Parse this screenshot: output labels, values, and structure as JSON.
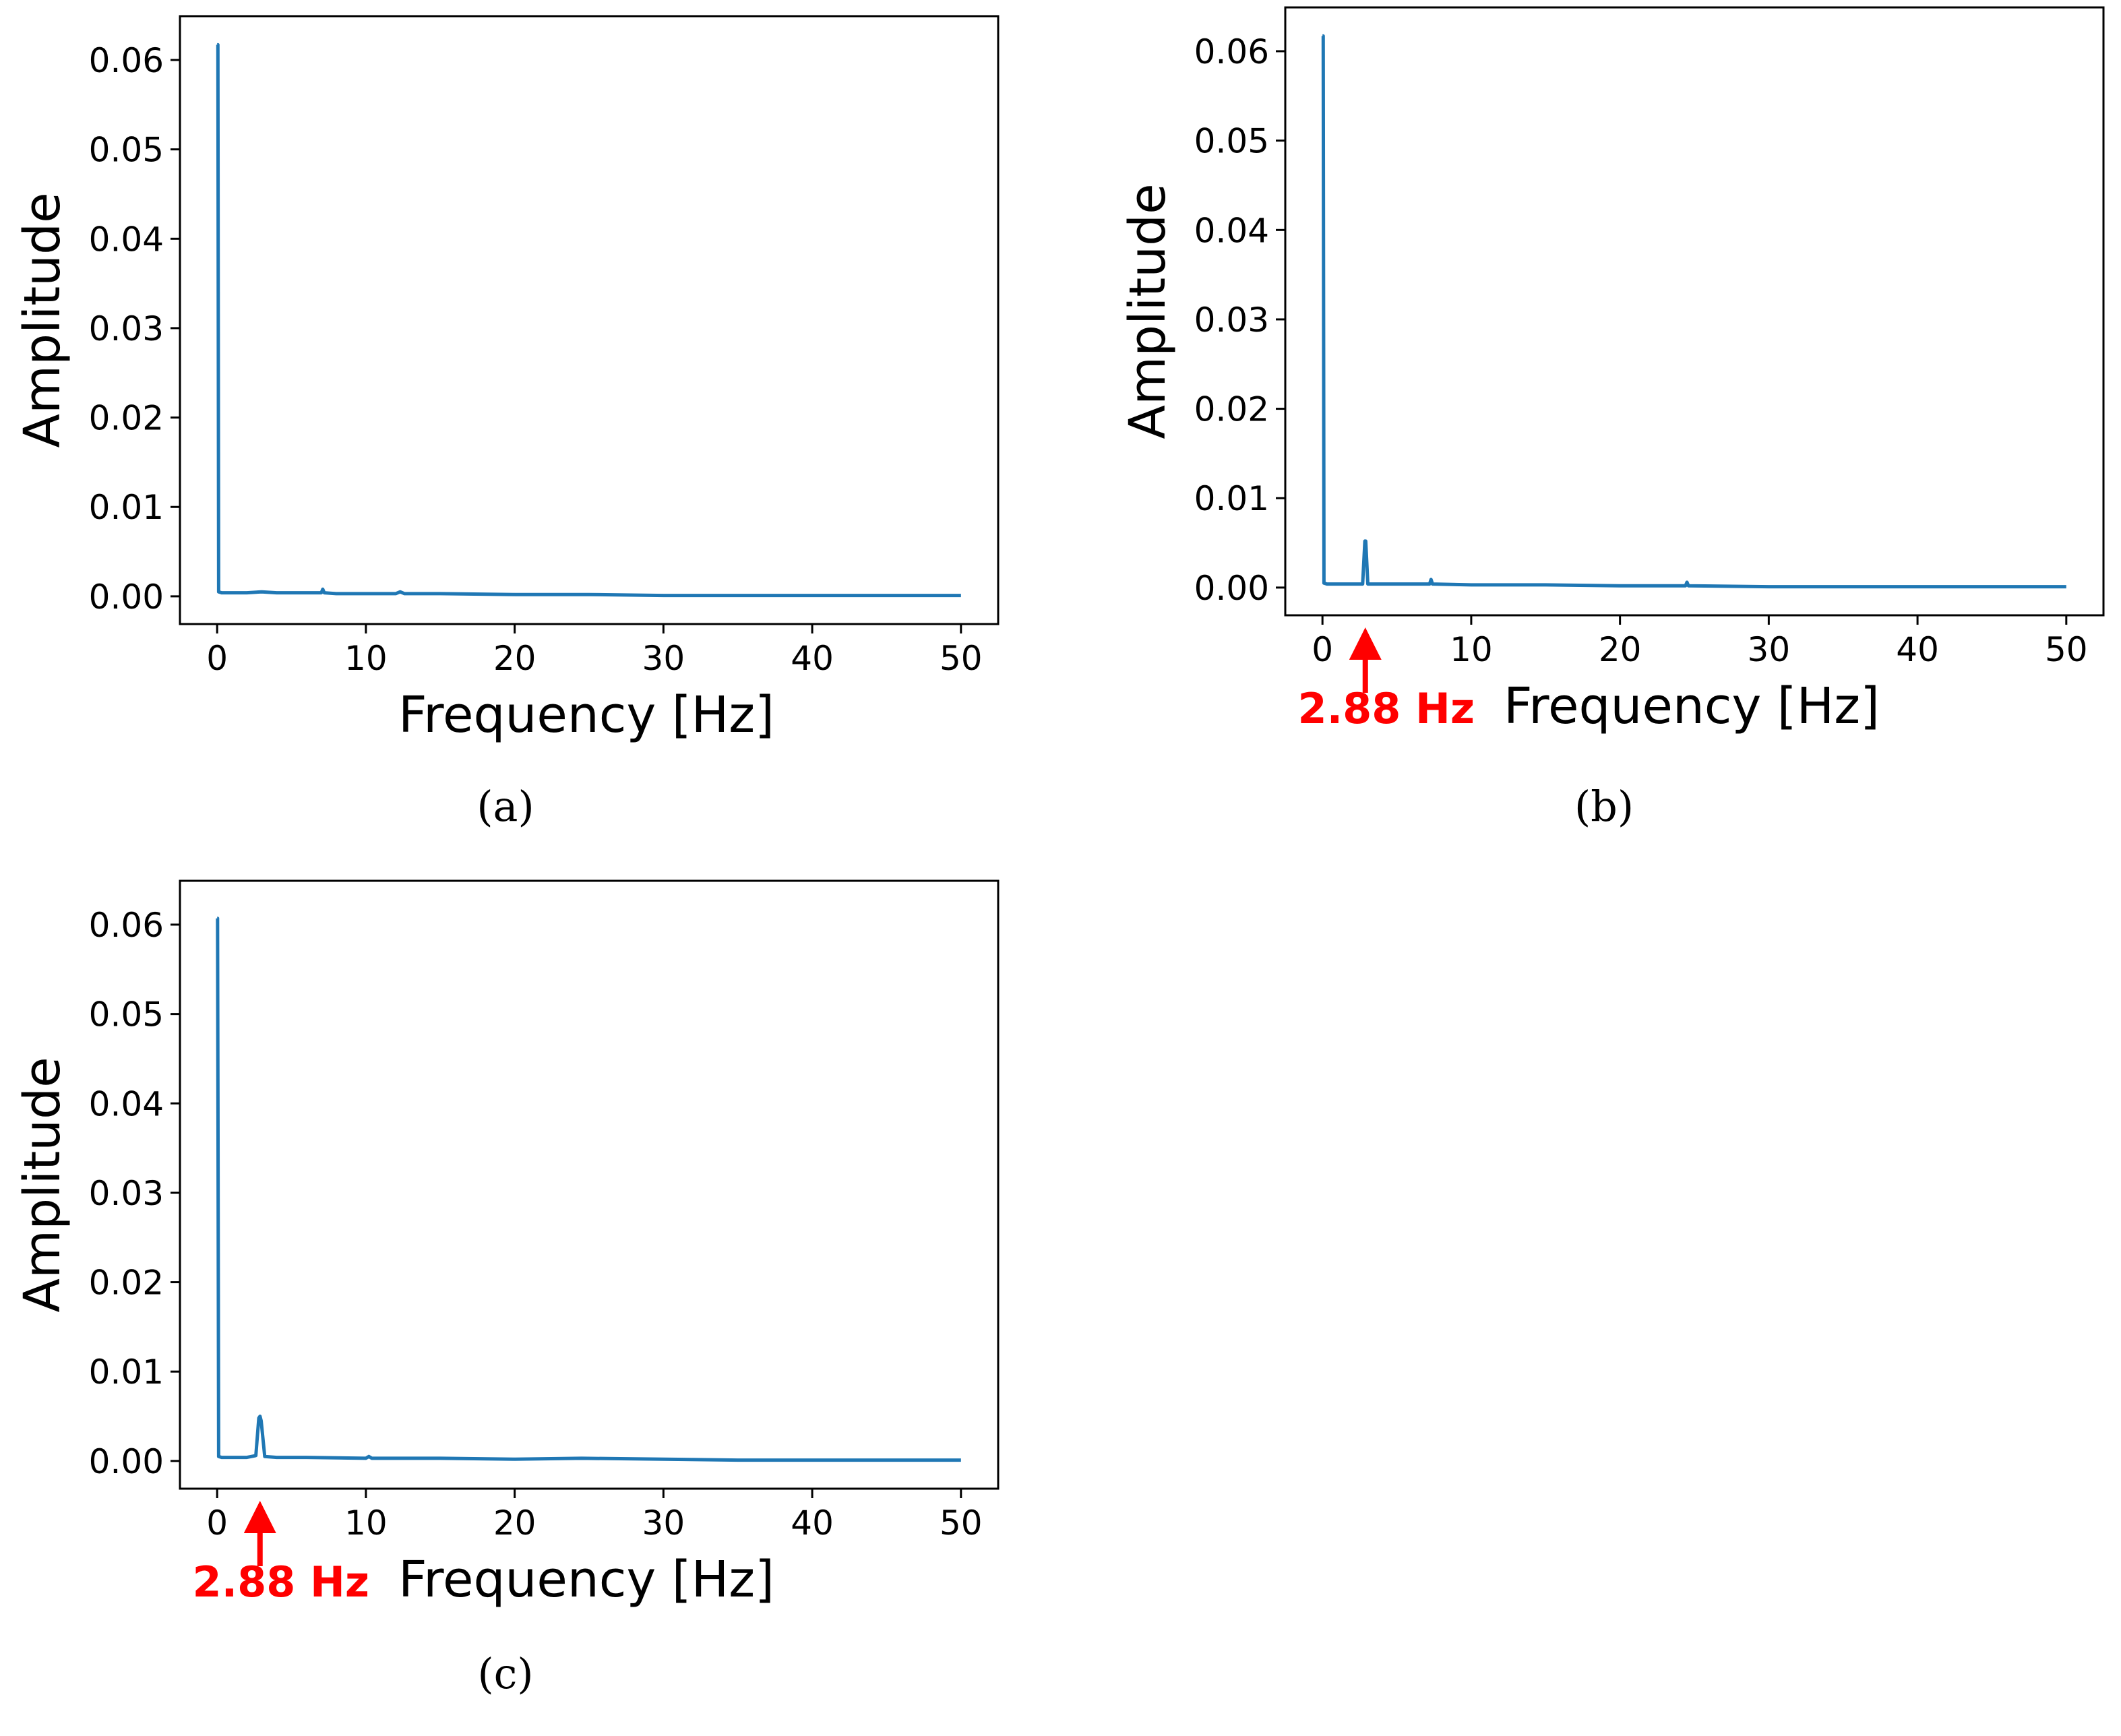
{
  "colors": {
    "line": "#1f77b4",
    "annotation": "#ff0000",
    "axes": "#000000"
  },
  "chart_data": [
    {
      "type": "line",
      "caption": "(a)",
      "xlabel": "Frequency [Hz]",
      "ylabel": "Amplitude",
      "xlim": [
        -2.5,
        52.5
      ],
      "ylim": [
        -0.0031,
        0.0649
      ],
      "xticks": [
        0,
        10,
        20,
        30,
        40,
        50
      ],
      "xtick_labels": [
        "0",
        "10",
        "20",
        "30",
        "40",
        "50"
      ],
      "yticks": [
        0.0,
        0.01,
        0.02,
        0.03,
        0.04,
        0.05,
        0.06
      ],
      "ytick_labels": [
        "0.00",
        "0.01",
        "0.02",
        "0.03",
        "0.04",
        "0.05",
        "0.06"
      ],
      "grid": false,
      "annotation": null,
      "series": [
        {
          "x": [
            0,
            0.05,
            0.1,
            0.3,
            1,
            2,
            3,
            4,
            5,
            6,
            7,
            7.1,
            7.2,
            8,
            10,
            12,
            12.3,
            12.6,
            15,
            20,
            25,
            30,
            35,
            40,
            45,
            50
          ],
          "y": [
            0.0617,
            0.0617,
            0.0005,
            0.0004,
            0.0004,
            0.0004,
            0.0005,
            0.0004,
            0.0004,
            0.0004,
            0.0004,
            0.0008,
            0.0004,
            0.0003,
            0.0003,
            0.0003,
            0.0005,
            0.0003,
            0.0003,
            0.0002,
            0.0002,
            0.0001,
            0.0001,
            0.0001,
            0.0001,
            0.0001
          ]
        }
      ]
    },
    {
      "type": "line",
      "caption": "(b)",
      "xlabel": "Frequency [Hz]",
      "ylabel": "Amplitude",
      "xlim": [
        -2.5,
        52.5
      ],
      "ylim": [
        -0.0031,
        0.0649
      ],
      "xticks": [
        0,
        10,
        20,
        30,
        40,
        50
      ],
      "xtick_labels": [
        "0",
        "10",
        "20",
        "30",
        "40",
        "50"
      ],
      "yticks": [
        0.0,
        0.01,
        0.02,
        0.03,
        0.04,
        0.05,
        0.06
      ],
      "ytick_labels": [
        "0.00",
        "0.01",
        "0.02",
        "0.03",
        "0.04",
        "0.05",
        "0.06"
      ],
      "grid": false,
      "annotation": {
        "text": "2.88 Hz",
        "x": 2.88
      },
      "series": [
        {
          "x": [
            0,
            0.05,
            0.1,
            0.3,
            1,
            2,
            2.7,
            2.85,
            2.88,
            2.91,
            3.05,
            4,
            6,
            7.2,
            7.3,
            7.4,
            10,
            15,
            20,
            24.4,
            24.5,
            24.6,
            30,
            35,
            40,
            45,
            50
          ],
          "y": [
            0.0617,
            0.0617,
            0.0005,
            0.0004,
            0.0004,
            0.0004,
            0.0004,
            0.0052,
            0.0052,
            0.0052,
            0.0004,
            0.0004,
            0.0004,
            0.0004,
            0.0009,
            0.0004,
            0.0003,
            0.0003,
            0.0002,
            0.0002,
            0.0006,
            0.0002,
            0.0001,
            0.0001,
            0.0001,
            0.0001,
            0.0001
          ]
        }
      ]
    },
    {
      "type": "line",
      "caption": "(c)",
      "xlabel": "Frequency [Hz]",
      "ylabel": "Amplitude",
      "xlim": [
        -2.5,
        52.5
      ],
      "ylim": [
        -0.0031,
        0.0649
      ],
      "xticks": [
        0,
        10,
        20,
        30,
        40,
        50
      ],
      "xtick_labels": [
        "0",
        "10",
        "20",
        "30",
        "40",
        "50"
      ],
      "yticks": [
        0.0,
        0.01,
        0.02,
        0.03,
        0.04,
        0.05,
        0.06
      ],
      "ytick_labels": [
        "0.00",
        "0.01",
        "0.02",
        "0.03",
        "0.04",
        "0.05",
        "0.06"
      ],
      "grid": false,
      "annotation": {
        "text": "2.88 Hz",
        "x": 2.88
      },
      "series": [
        {
          "x": [
            0,
            0.03,
            0.06,
            0.1,
            0.3,
            1,
            2,
            2.6,
            2.8,
            2.88,
            2.96,
            3.2,
            4,
            6,
            10,
            10.2,
            10.4,
            15,
            20,
            24.5,
            30,
            35,
            40,
            45,
            50
          ],
          "y": [
            0.0607,
            0.0607,
            0.036,
            0.0005,
            0.0004,
            0.0004,
            0.0004,
            0.0006,
            0.0048,
            0.005,
            0.0045,
            0.0005,
            0.0004,
            0.0004,
            0.0003,
            0.0005,
            0.0003,
            0.0003,
            0.0002,
            0.0003,
            0.0002,
            0.0001,
            0.0001,
            0.0001,
            0.0001
          ]
        }
      ]
    }
  ]
}
